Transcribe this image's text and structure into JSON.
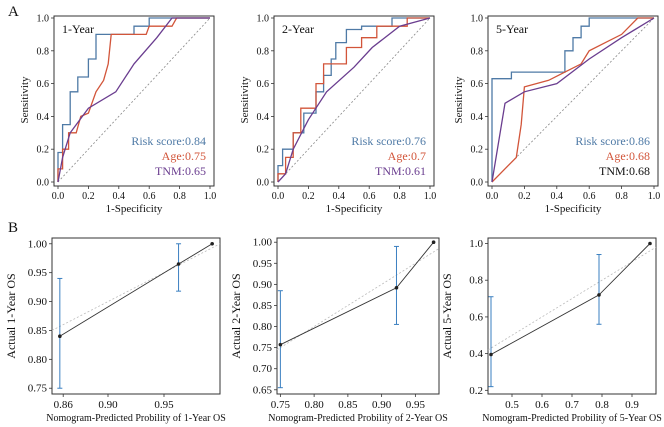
{
  "panels": {
    "A": "A",
    "B": "B"
  },
  "colors": {
    "risk": "#4f7aa6",
    "age": "#d2553a",
    "tnm": "#6a3d8f",
    "tnm_black": "#111111",
    "calib_line": "#333333",
    "calib_err": "#3a7fc0",
    "ref": "#888888"
  },
  "chart_data": [
    {
      "type": "line",
      "title": "1-Year",
      "xlabel": "1-Specificity",
      "ylabel": "Sensitivity",
      "xlim": [
        0,
        1
      ],
      "ylim": [
        0,
        1
      ],
      "xticks": [
        "0.0",
        "0.2",
        "0.4",
        "0.6",
        "0.8",
        "1.0"
      ],
      "yticks": [
        "0.0",
        "0.2",
        "0.4",
        "0.6",
        "0.8",
        "1.0"
      ],
      "legend": [
        {
          "label": "Risk score:0.84",
          "color": "#4f7aa6"
        },
        {
          "label": "Age:0.75",
          "color": "#d2553a"
        },
        {
          "label": "TNM:0.65",
          "color": "#6a3d8f"
        }
      ],
      "series": [
        {
          "name": "Risk score",
          "color": "#4f7aa6",
          "points": [
            [
              0,
              0
            ],
            [
              0,
              0.18
            ],
            [
              0.03,
              0.18
            ],
            [
              0.03,
              0.35
            ],
            [
              0.08,
              0.35
            ],
            [
              0.08,
              0.55
            ],
            [
              0.13,
              0.55
            ],
            [
              0.13,
              0.64
            ],
            [
              0.2,
              0.64
            ],
            [
              0.2,
              0.75
            ],
            [
              0.25,
              0.75
            ],
            [
              0.25,
              0.9
            ],
            [
              0.5,
              0.9
            ],
            [
              0.5,
              0.95
            ],
            [
              0.6,
              0.95
            ],
            [
              0.6,
              1
            ],
            [
              1,
              1
            ]
          ]
        },
        {
          "name": "Age",
          "color": "#d2553a",
          "points": [
            [
              0,
              0
            ],
            [
              0,
              0.08
            ],
            [
              0.03,
              0.08
            ],
            [
              0.03,
              0.2
            ],
            [
              0.07,
              0.2
            ],
            [
              0.07,
              0.3
            ],
            [
              0.12,
              0.3
            ],
            [
              0.15,
              0.4
            ],
            [
              0.2,
              0.42
            ],
            [
              0.25,
              0.55
            ],
            [
              0.3,
              0.62
            ],
            [
              0.33,
              0.72
            ],
            [
              0.35,
              0.9
            ],
            [
              0.58,
              0.9
            ],
            [
              0.6,
              0.95
            ],
            [
              0.75,
              0.95
            ],
            [
              0.78,
              1
            ],
            [
              1,
              1
            ]
          ]
        },
        {
          "name": "TNM",
          "color": "#6a3d8f",
          "points": [
            [
              0,
              0
            ],
            [
              0.03,
              0.15
            ],
            [
              0.08,
              0.3
            ],
            [
              0.2,
              0.45
            ],
            [
              0.38,
              0.55
            ],
            [
              0.5,
              0.72
            ],
            [
              0.65,
              0.88
            ],
            [
              0.75,
              1
            ],
            [
              1,
              1
            ]
          ]
        }
      ]
    },
    {
      "type": "line",
      "title": "2-Year",
      "xlabel": "1-Specificity",
      "ylabel": "Sensitivity",
      "xlim": [
        0,
        1
      ],
      "ylim": [
        0,
        1
      ],
      "xticks": [
        "0.0",
        "0.2",
        "0.4",
        "0.6",
        "0.8",
        "1.0"
      ],
      "yticks": [
        "0.0",
        "0.2",
        "0.4",
        "0.6",
        "0.8",
        "1.0"
      ],
      "legend": [
        {
          "label": "Risk score:0.76",
          "color": "#4f7aa6"
        },
        {
          "label": "Age:0.7",
          "color": "#d2553a"
        },
        {
          "label": "TNM:0.61",
          "color": "#6a3d8f"
        }
      ],
      "series": [
        {
          "name": "Risk score",
          "color": "#4f7aa6",
          "points": [
            [
              0,
              0
            ],
            [
              0,
              0.1
            ],
            [
              0.03,
              0.1
            ],
            [
              0.03,
              0.2
            ],
            [
              0.1,
              0.2
            ],
            [
              0.1,
              0.3
            ],
            [
              0.17,
              0.3
            ],
            [
              0.17,
              0.42
            ],
            [
              0.25,
              0.42
            ],
            [
              0.25,
              0.55
            ],
            [
              0.3,
              0.55
            ],
            [
              0.3,
              0.65
            ],
            [
              0.35,
              0.65
            ],
            [
              0.35,
              0.75
            ],
            [
              0.38,
              0.75
            ],
            [
              0.38,
              0.85
            ],
            [
              0.45,
              0.85
            ],
            [
              0.45,
              0.93
            ],
            [
              0.55,
              0.93
            ],
            [
              0.55,
              0.95
            ],
            [
              0.75,
              0.95
            ],
            [
              0.75,
              1
            ],
            [
              1,
              1
            ]
          ]
        },
        {
          "name": "Age",
          "color": "#d2553a",
          "points": [
            [
              0,
              0
            ],
            [
              0,
              0.05
            ],
            [
              0.05,
              0.05
            ],
            [
              0.05,
              0.15
            ],
            [
              0.1,
              0.15
            ],
            [
              0.1,
              0.3
            ],
            [
              0.15,
              0.3
            ],
            [
              0.15,
              0.45
            ],
            [
              0.25,
              0.45
            ],
            [
              0.25,
              0.6
            ],
            [
              0.3,
              0.6
            ],
            [
              0.3,
              0.72
            ],
            [
              0.45,
              0.72
            ],
            [
              0.45,
              0.82
            ],
            [
              0.55,
              0.82
            ],
            [
              0.55,
              0.88
            ],
            [
              0.65,
              0.88
            ],
            [
              0.65,
              0.95
            ],
            [
              0.85,
              0.95
            ],
            [
              0.85,
              1
            ],
            [
              1,
              1
            ]
          ]
        },
        {
          "name": "TNM",
          "color": "#6a3d8f",
          "points": [
            [
              0,
              0
            ],
            [
              0.05,
              0.05
            ],
            [
              0.1,
              0.2
            ],
            [
              0.2,
              0.38
            ],
            [
              0.32,
              0.55
            ],
            [
              0.5,
              0.7
            ],
            [
              0.62,
              0.82
            ],
            [
              0.8,
              0.95
            ],
            [
              1,
              1
            ]
          ]
        }
      ]
    },
    {
      "type": "line",
      "title": "5-Year",
      "xlabel": "1-Specificity",
      "ylabel": "Sensitivity",
      "xlim": [
        0,
        1
      ],
      "ylim": [
        0,
        1
      ],
      "xticks": [
        "0.0",
        "0.2",
        "0.4",
        "0.6",
        "0.8",
        "1.0"
      ],
      "yticks": [
        "0.0",
        "0.2",
        "0.4",
        "0.6",
        "0.8",
        "1.0"
      ],
      "legend": [
        {
          "label": "Risk score:0.86",
          "color": "#4f7aa6"
        },
        {
          "label": "Age:0.68",
          "color": "#d2553a"
        },
        {
          "label": "TNM:0.68",
          "color": "#111111"
        }
      ],
      "series": [
        {
          "name": "Risk score",
          "color": "#4f7aa6",
          "points": [
            [
              0,
              0
            ],
            [
              0,
              0.63
            ],
            [
              0.12,
              0.63
            ],
            [
              0.12,
              0.67
            ],
            [
              0.45,
              0.67
            ],
            [
              0.45,
              0.8
            ],
            [
              0.5,
              0.8
            ],
            [
              0.5,
              0.88
            ],
            [
              0.55,
              0.88
            ],
            [
              0.55,
              0.95
            ],
            [
              0.6,
              0.95
            ],
            [
              0.6,
              1
            ],
            [
              1,
              1
            ]
          ]
        },
        {
          "name": "Age",
          "color": "#d2553a",
          "points": [
            [
              0,
              0
            ],
            [
              0.05,
              0.05
            ],
            [
              0.1,
              0.1
            ],
            [
              0.15,
              0.15
            ],
            [
              0.18,
              0.35
            ],
            [
              0.2,
              0.58
            ],
            [
              0.35,
              0.62
            ],
            [
              0.45,
              0.67
            ],
            [
              0.55,
              0.72
            ],
            [
              0.6,
              0.8
            ],
            [
              0.7,
              0.85
            ],
            [
              0.8,
              0.9
            ],
            [
              0.9,
              1
            ],
            [
              1,
              1
            ]
          ]
        },
        {
          "name": "TNM",
          "color": "#6a3d8f",
          "points": [
            [
              0,
              0
            ],
            [
              0.08,
              0.48
            ],
            [
              0.2,
              0.55
            ],
            [
              0.4,
              0.6
            ],
            [
              0.6,
              0.75
            ],
            [
              0.8,
              0.88
            ],
            [
              1,
              1
            ]
          ]
        }
      ]
    },
    {
      "type": "line",
      "title": "",
      "xlabel": "Nomogram-Predicted Probility of 1-Year OS",
      "ylabel": "Actual 1-Year OS",
      "xlim": [
        0.85,
        1.0
      ],
      "ylim": [
        0.74,
        1.01
      ],
      "xticks": [
        0.86,
        0.9,
        0.95
      ],
      "xticklabels": [
        "0.86",
        "0.90",
        "0.95"
      ],
      "yticks": [
        0.75,
        0.8,
        0.85,
        0.9,
        0.95,
        1.0
      ],
      "yticklabels": [
        "0.75",
        "0.80",
        "0.85",
        "0.90",
        "0.95",
        "1.00"
      ],
      "points": [
        {
          "x": 0.857,
          "y": 0.84,
          "low": 0.75,
          "high": 0.94
        },
        {
          "x": 0.963,
          "y": 0.965,
          "low": 0.918,
          "high": 1.0
        },
        {
          "x": 0.993,
          "y": 1.0,
          "low": 1.0,
          "high": 1.0
        }
      ]
    },
    {
      "type": "line",
      "title": "",
      "xlabel": "Nomogram-Predicted Probility of 2-Year OS",
      "ylabel": "Actual 2-Year OS",
      "xlim": [
        0.745,
        0.985
      ],
      "ylim": [
        0.64,
        1.01
      ],
      "xticks": [
        0.75,
        0.8,
        0.85,
        0.9,
        0.95
      ],
      "xticklabels": [
        "0.75",
        "0.80",
        "0.85",
        "0.90",
        "0.95"
      ],
      "yticks": [
        0.65,
        0.7,
        0.75,
        0.8,
        0.85,
        0.9,
        0.95,
        1.0
      ],
      "yticklabels": [
        "0.65",
        "0.70",
        "0.75",
        "0.80",
        "0.85",
        "0.90",
        "0.95",
        "1.00"
      ],
      "points": [
        {
          "x": 0.75,
          "y": 0.757,
          "low": 0.655,
          "high": 0.885
        },
        {
          "x": 0.922,
          "y": 0.892,
          "low": 0.805,
          "high": 0.99
        },
        {
          "x": 0.977,
          "y": 1.0,
          "low": 1.0,
          "high": 1.0
        }
      ]
    },
    {
      "type": "line",
      "title": "",
      "xlabel": "Nomogram-Predicted Probility of 5-Year OS",
      "ylabel": "Actual 5-Year OS",
      "xlim": [
        0.42,
        0.98
      ],
      "ylim": [
        0.18,
        1.03
      ],
      "xticks": [
        0.5,
        0.6,
        0.7,
        0.8,
        0.9
      ],
      "xticklabels": [
        "0.5",
        "0.6",
        "0.7",
        "0.8",
        "0.9"
      ],
      "yticks": [
        0.2,
        0.4,
        0.6,
        0.8,
        1.0
      ],
      "yticklabels": [
        "0.2",
        "0.4",
        "0.6",
        "0.8",
        "1.0"
      ],
      "points": [
        {
          "x": 0.43,
          "y": 0.395,
          "low": 0.22,
          "high": 0.71
        },
        {
          "x": 0.79,
          "y": 0.72,
          "low": 0.56,
          "high": 0.94
        },
        {
          "x": 0.96,
          "y": 1.0,
          "low": 1.0,
          "high": 1.0
        }
      ]
    }
  ]
}
